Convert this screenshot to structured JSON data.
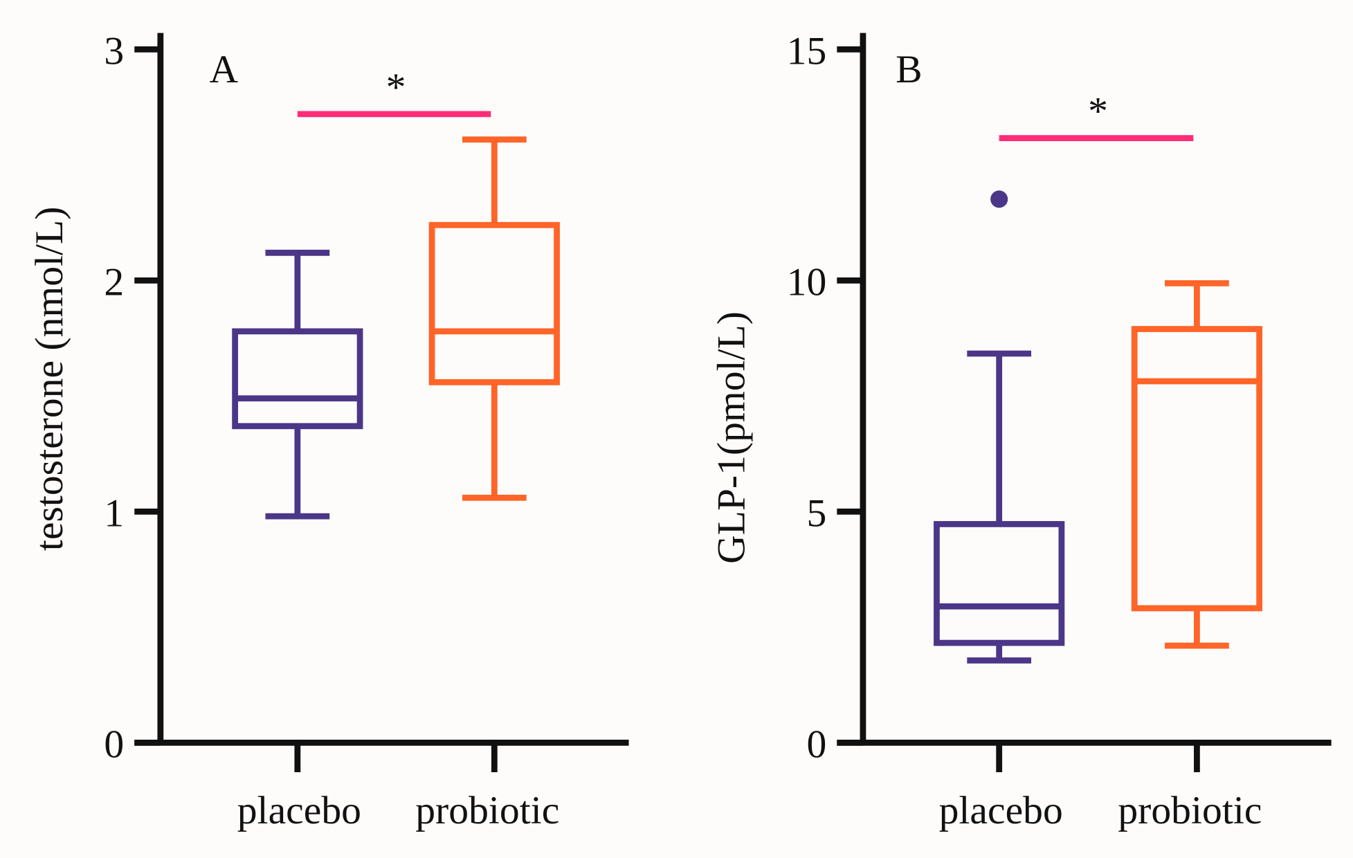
{
  "colors": {
    "placebo": "#4b3688",
    "probiotic": "#ff6428",
    "significance": "#ff2d78",
    "axis": "#111111",
    "background": "#fefcfb"
  },
  "chart_data": [
    {
      "type": "box",
      "panel_label": "A",
      "ylabel": "testosterone (nmol/L)",
      "ylim": [
        0,
        3
      ],
      "yticks": [
        "0",
        "1",
        "2",
        "3"
      ],
      "categories": [
        "placebo",
        "probiotic"
      ],
      "boxes": [
        {
          "name": "placebo",
          "whisker_low": 0.98,
          "q1": 1.37,
          "median": 1.49,
          "q3": 1.78,
          "whisker_high": 2.12,
          "outliers": []
        },
        {
          "name": "probiotic",
          "whisker_low": 1.06,
          "q1": 1.56,
          "median": 1.78,
          "q3": 2.24,
          "whisker_high": 2.61,
          "outliers": []
        }
      ],
      "significance": {
        "label": "*",
        "level": 2.72
      }
    },
    {
      "type": "box",
      "panel_label": "B",
      "ylabel": "GLP-1(pmol/L)",
      "ylim": [
        0,
        15
      ],
      "yticks": [
        "0",
        "5",
        "10",
        "15"
      ],
      "categories": [
        "placebo",
        "probiotic"
      ],
      "boxes": [
        {
          "name": "placebo",
          "whisker_low": 1.78,
          "q1": 2.16,
          "median": 2.95,
          "q3": 4.73,
          "whisker_high": 8.42,
          "outliers": [
            11.76
          ]
        },
        {
          "name": "probiotic",
          "whisker_low": 2.1,
          "q1": 2.91,
          "median": 7.82,
          "q3": 8.95,
          "whisker_high": 9.94,
          "outliers": []
        }
      ],
      "significance": {
        "label": "*",
        "level": 13.08
      }
    }
  ]
}
